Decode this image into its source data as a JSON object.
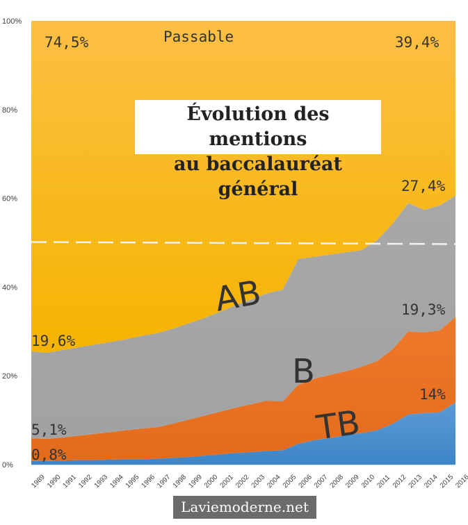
{
  "chart_data": {
    "type": "area",
    "title_line1": "Évolution des mentions",
    "title_line2": "au baccalauréat général",
    "years": [
      "1989",
      "1990",
      "1991",
      "1992",
      "1993",
      "1994",
      "1995",
      "1996",
      "1997",
      "1998",
      "1999",
      "2000",
      "2001",
      "2002",
      "2003",
      "2004",
      "2005",
      "2006",
      "2007",
      "2008",
      "2009",
      "2010",
      "2011",
      "2012",
      "2013",
      "2014",
      "2015",
      "2016"
    ],
    "y_ticks": [
      "0%",
      "20%",
      "40%",
      "60%",
      "80%",
      "100%"
    ],
    "ylim": [
      0,
      100
    ],
    "series": [
      {
        "name": "TB",
        "color": "#4a8fd4",
        "cumulative": [
          0.8,
          0.8,
          0.9,
          1.0,
          1.0,
          1.1,
          1.2,
          1.2,
          1.3,
          1.5,
          1.7,
          2.0,
          2.3,
          2.6,
          2.8,
          3.1,
          3.2,
          4.7,
          5.5,
          6.0,
          6.6,
          7.1,
          7.7,
          9.2,
          11.3,
          11.6,
          11.8,
          14.0
        ]
      },
      {
        "name": "B",
        "color": "#ee7324",
        "cumulative": [
          5.9,
          5.8,
          6.1,
          6.5,
          6.9,
          7.3,
          7.7,
          8.1,
          8.4,
          9.2,
          10.1,
          11.0,
          11.9,
          12.8,
          13.6,
          14.4,
          14.2,
          18.0,
          19.3,
          20.2,
          21.0,
          22.0,
          23.3,
          26.0,
          30.0,
          29.8,
          30.2,
          33.3
        ]
      },
      {
        "name": "AB",
        "color": "#a5a5a5",
        "cumulative": [
          25.5,
          25.2,
          25.8,
          26.4,
          27.0,
          27.6,
          28.2,
          29.0,
          29.6,
          30.6,
          31.8,
          33.0,
          34.4,
          35.9,
          37.2,
          38.6,
          39.4,
          46.3,
          46.8,
          47.3,
          47.8,
          48.3,
          50.5,
          54.3,
          58.9,
          57.4,
          58.4,
          60.6
        ]
      },
      {
        "name": "Passable",
        "color": "#fcbf22",
        "cumulative": [
          100,
          100,
          100,
          100,
          100,
          100,
          100,
          100,
          100,
          100,
          100,
          100,
          100,
          100,
          100,
          100,
          100,
          100,
          100,
          100,
          100,
          100,
          100,
          100,
          100,
          100,
          100,
          100
        ]
      }
    ],
    "reference_line": 50,
    "band_labels": {
      "passable": "Passable",
      "ab": "AB",
      "b": "B",
      "tb": "TB"
    },
    "annotations": {
      "passable_1989": "74,5%",
      "passable_2016": "39,4%",
      "ab_1989": "19,6%",
      "ab_2016": "27,4%",
      "b_1989": "5,1%",
      "b_2016": "19,3%",
      "tb_1989": "0,8%",
      "tb_2016": "14%"
    }
  },
  "footer": {
    "site": "Laviemoderne.net"
  }
}
